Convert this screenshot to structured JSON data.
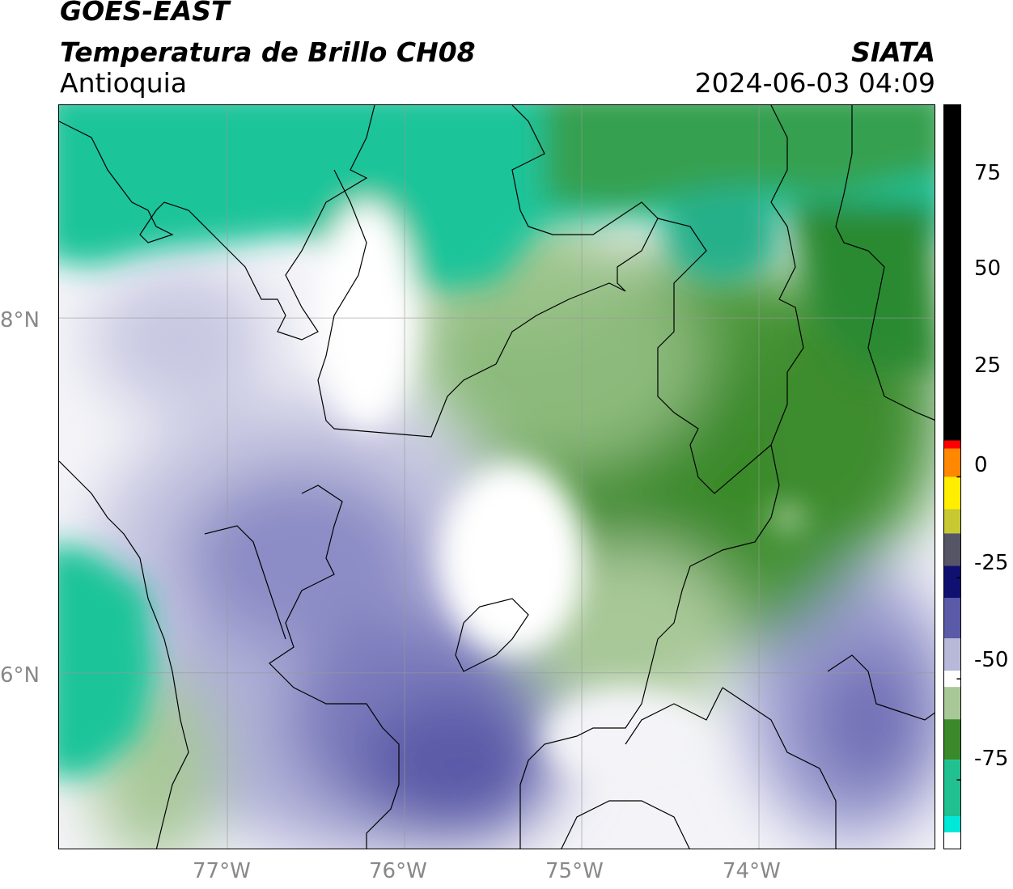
{
  "header": {
    "satellite": "GOES-EAST",
    "product": "Temperatura de Brillo CH08",
    "region": "Antioquia",
    "agency": "SIATA",
    "timestamp": "2024-06-03 04:09"
  },
  "map": {
    "lat_labels": [
      "8°N",
      "6°N"
    ],
    "lon_labels": [
      "77°W",
      "76°W",
      "75°W",
      "74°W"
    ],
    "lat_values": [
      8,
      6
    ],
    "lon_values": [
      -77,
      -76,
      -75,
      -74
    ],
    "extent": {
      "lon_min": -77.95,
      "lon_max": -73.0,
      "lat_min": 5.0,
      "lat_max": 9.2
    },
    "gridlines": true
  },
  "colorbar": {
    "labels": [
      "75",
      "50",
      "25",
      "0",
      "-25",
      "-50",
      "-75"
    ],
    "values": [
      75,
      50,
      25,
      0,
      -25,
      -50,
      -75
    ],
    "range": [
      -92,
      92
    ],
    "segments": [
      {
        "from": 92,
        "to": 9,
        "color": "#000000"
      },
      {
        "from": 9,
        "to": 7,
        "color": "#ff0000"
      },
      {
        "from": 7,
        "to": 0,
        "color": "#ff8800"
      },
      {
        "from": 0,
        "to": -8,
        "color": "#ffee00"
      },
      {
        "from": -8,
        "to": -14,
        "color": "#c8c832"
      },
      {
        "from": -14,
        "to": -22,
        "color": "#555566"
      },
      {
        "from": -22,
        "to": -30,
        "color": "#101070"
      },
      {
        "from": -30,
        "to": -40,
        "color": "#5a5aa8"
      },
      {
        "from": -40,
        "to": -48,
        "color": "#b8b8d8"
      },
      {
        "from": -48,
        "to": -52,
        "color": "#ffffff"
      },
      {
        "from": -52,
        "to": -60,
        "color": "#a8c898"
      },
      {
        "from": -60,
        "to": -70,
        "color": "#3a8a2a"
      },
      {
        "from": -70,
        "to": -84,
        "color": "#20c090"
      },
      {
        "from": -84,
        "to": -88,
        "color": "#00e8d8"
      },
      {
        "from": -88,
        "to": -92,
        "color": "#ffffff"
      }
    ]
  },
  "colors": {
    "moist_high": "#1cc49a",
    "moist_mid": "#3c8c2c",
    "moist_light": "#a6c896",
    "neutral": "#ffffff",
    "dry_light": "#c4c4e0",
    "dry_mid": "#8888c4",
    "dry_deep": "#5050a0",
    "borders": "#000000",
    "grid": "#999999"
  }
}
